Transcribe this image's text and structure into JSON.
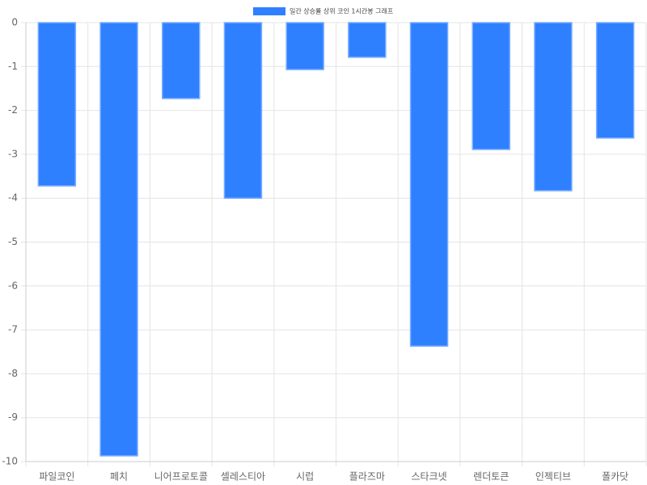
{
  "chart_data": {
    "type": "bar",
    "legend": "일간 상승률 상위 코인 1시간봉 그래프",
    "categories": [
      "파일코인",
      "페치",
      "니어프로토콜",
      "셀레스티아",
      "시럽",
      "플라즈마",
      "스타크넷",
      "렌더토큰",
      "인젝티브",
      "폴카닷"
    ],
    "values": [
      -3.72,
      -9.87,
      -1.73,
      -4.0,
      -1.07,
      -0.79,
      -7.37,
      -2.89,
      -3.83,
      -2.63
    ],
    "color": "#2f80ff",
    "ylim": [
      -10,
      0
    ],
    "yticks": [
      0,
      -1,
      -2,
      -3,
      -4,
      -5,
      -6,
      -7,
      -8,
      -9,
      -10
    ],
    "grid": true
  }
}
